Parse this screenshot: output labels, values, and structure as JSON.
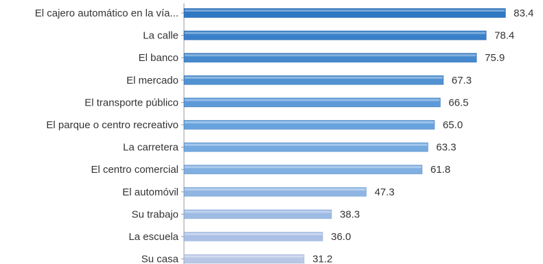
{
  "chart_data": {
    "type": "bar",
    "orientation": "horizontal",
    "title": "",
    "xlabel": "",
    "ylabel": "",
    "categories": [
      "El cajero automático en la vía...",
      "La calle",
      "El banco",
      "El mercado",
      "El transporte público",
      "El parque o centro recreativo",
      "La carretera",
      "El centro comercial",
      "El automóvil",
      "Su trabajo",
      "La escuela",
      "Su casa"
    ],
    "values": [
      83.4,
      78.4,
      75.9,
      67.3,
      66.5,
      65.0,
      63.3,
      61.8,
      47.3,
      38.3,
      36.0,
      31.2
    ],
    "value_labels": [
      "83.4",
      "78.4",
      "75.9",
      "67.3",
      "66.5",
      "65.0",
      "63.3",
      "61.8",
      "47.3",
      "38.3",
      "36.0",
      "31.2"
    ],
    "xlim": [
      0,
      100
    ],
    "grid": false,
    "legend": "none",
    "colors": {
      "bar_dark": "#2f78c4",
      "bar_mid": "#6ea7df",
      "bar_light": "#b9c6e6",
      "bar_border": "#1f5fa8",
      "text": "#333333"
    }
  }
}
